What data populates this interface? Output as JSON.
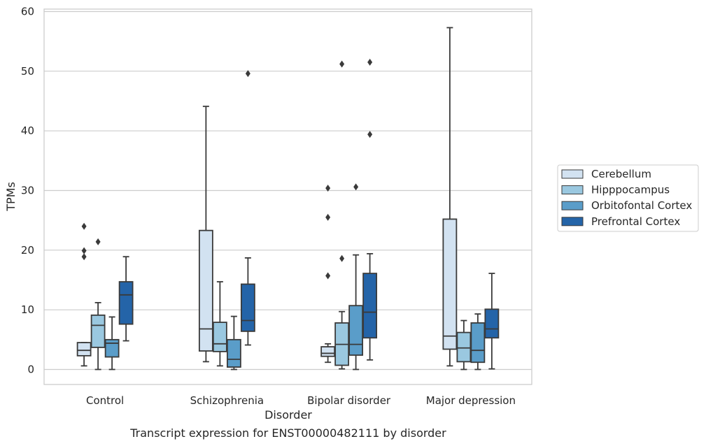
{
  "chart_data": {
    "type": "boxplot",
    "caption": "Transcript expression for ENST00000482111 by disorder",
    "xlabel": "Disorder",
    "ylabel": "TPMs",
    "ylim": [
      -2.7,
      60.3
    ],
    "yticks": [
      0,
      10,
      20,
      30,
      40,
      50,
      60
    ],
    "grid": "horizontal",
    "legend_position": "right",
    "categories": [
      "Control",
      "Schizophrenia",
      "Bipolar disorder",
      "Major depression"
    ],
    "series": [
      {
        "name": "Cerebellum",
        "color": "#d2e2f1",
        "boxes": [
          {
            "whislo": 0.6,
            "q1": 2.3,
            "med": 3.2,
            "q3": 4.5,
            "whishi": 4.5,
            "fliers": [
              18.9,
              19.9,
              24.0
            ]
          },
          {
            "whislo": 1.3,
            "q1": 3.1,
            "med": 6.8,
            "q3": 23.3,
            "whishi": 44.1,
            "fliers": []
          },
          {
            "whislo": 1.2,
            "q1": 2.2,
            "med": 2.7,
            "q3": 3.8,
            "whishi": 4.3,
            "fliers": [
              15.7,
              25.5,
              30.4
            ]
          },
          {
            "whislo": 0.6,
            "q1": 3.4,
            "med": 5.6,
            "q3": 25.2,
            "whishi": 57.3,
            "fliers": []
          }
        ]
      },
      {
        "name": "Hipppocampus",
        "color": "#9ac8e0",
        "boxes": [
          {
            "whislo": 0.0,
            "q1": 3.7,
            "med": 7.4,
            "q3": 9.1,
            "whishi": 11.2,
            "fliers": [
              21.4
            ]
          },
          {
            "whislo": 0.6,
            "q1": 3.0,
            "med": 4.3,
            "q3": 7.9,
            "whishi": 14.7,
            "fliers": []
          },
          {
            "whislo": 0.1,
            "q1": 0.7,
            "med": 4.2,
            "q3": 7.8,
            "whishi": 9.7,
            "fliers": [
              18.6,
              51.2
            ]
          },
          {
            "whislo": 0.0,
            "q1": 1.3,
            "med": 3.6,
            "q3": 6.2,
            "whishi": 8.2,
            "fliers": []
          }
        ]
      },
      {
        "name": "Orbitofontal Cortex",
        "color": "#5a9dc9",
        "boxes": [
          {
            "whislo": 0.0,
            "q1": 2.1,
            "med": 4.4,
            "q3": 5.0,
            "whishi": 8.8,
            "fliers": []
          },
          {
            "whislo": 0.0,
            "q1": 0.4,
            "med": 1.7,
            "q3": 5.0,
            "whishi": 8.9,
            "fliers": []
          },
          {
            "whislo": 0.0,
            "q1": 2.4,
            "med": 4.2,
            "q3": 10.7,
            "whishi": 19.2,
            "fliers": [
              30.6
            ]
          },
          {
            "whislo": 0.0,
            "q1": 1.2,
            "med": 3.2,
            "q3": 7.8,
            "whishi": 9.3,
            "fliers": []
          }
        ]
      },
      {
        "name": "Prefrontal Cortex",
        "color": "#2464a8",
        "boxes": [
          {
            "whislo": 4.8,
            "q1": 7.6,
            "med": 12.5,
            "q3": 14.7,
            "whishi": 18.9,
            "fliers": []
          },
          {
            "whislo": 4.1,
            "q1": 6.4,
            "med": 8.2,
            "q3": 14.3,
            "whishi": 18.7,
            "fliers": [
              49.6
            ]
          },
          {
            "whislo": 1.6,
            "q1": 5.3,
            "med": 9.6,
            "q3": 16.1,
            "whishi": 19.4,
            "fliers": [
              39.4,
              51.5
            ]
          },
          {
            "whislo": 0.1,
            "q1": 5.3,
            "med": 6.8,
            "q3": 10.1,
            "whishi": 16.1,
            "fliers": []
          }
        ]
      }
    ]
  }
}
